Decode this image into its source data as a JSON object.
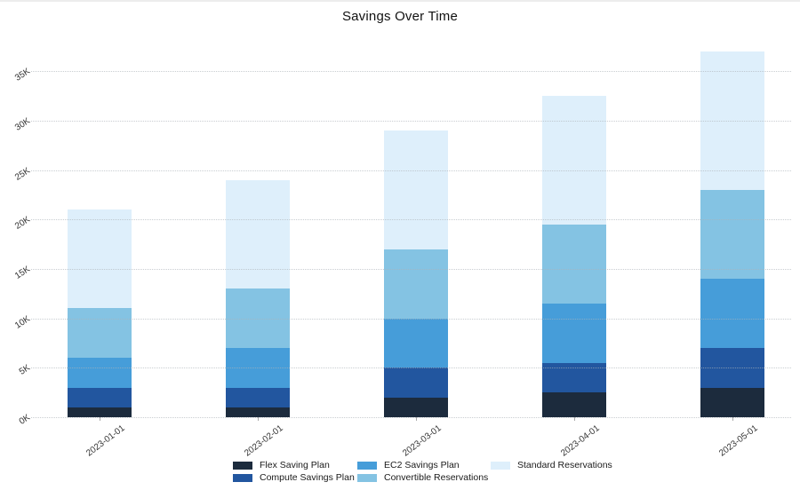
{
  "chart_data": {
    "type": "bar",
    "stacked": true,
    "title": "Savings Over Time",
    "categories": [
      "2023-01-01",
      "2023-02-01",
      "2023-03-01",
      "2023-04-01",
      "2023-05-01"
    ],
    "series": [
      {
        "name": "Flex Saving Plan",
        "color": "#1c2b3d",
        "values": [
          1000,
          1000,
          2000,
          2500,
          3000
        ]
      },
      {
        "name": "Compute Savings Plan",
        "color": "#22569f",
        "values": [
          2000,
          2000,
          3000,
          3000,
          4000
        ]
      },
      {
        "name": "EC2 Savings Plan",
        "color": "#469dd9",
        "values": [
          3000,
          4000,
          5000,
          6000,
          7000
        ]
      },
      {
        "name": "Convertible Reservations",
        "color": "#84c3e3",
        "values": [
          5000,
          6000,
          7000,
          8000,
          9000
        ]
      },
      {
        "name": "Standard Reservations",
        "color": "#deeffb",
        "values": [
          10000,
          11000,
          12000,
          13000,
          14000
        ]
      }
    ],
    "stack_totals": [
      21000,
      24000,
      29000,
      32500,
      37000
    ],
    "y_axis": {
      "tick_values": [
        0,
        5000,
        10000,
        15000,
        20000,
        25000,
        30000,
        35000
      ],
      "tick_labels": [
        "0K",
        "5K",
        "10K",
        "15K",
        "20K",
        "25K",
        "30K",
        "35K"
      ],
      "range": [
        0,
        38000
      ],
      "grid": "dotted",
      "tick_rotation_deg": -33
    },
    "x_axis": {
      "tick_labels": [
        "2023-01-01",
        "2023-02-01",
        "2023-03-01",
        "2023-04-01",
        "2023-05-01"
      ],
      "tick_rotation_deg": -37
    },
    "legend": {
      "position": "bottom-center",
      "rows": 2,
      "columns": 3,
      "order": [
        "Flex Saving Plan",
        "Compute Savings Plan",
        "EC2 Savings Plan",
        "Convertible Reservations",
        "Standard Reservations"
      ]
    }
  }
}
